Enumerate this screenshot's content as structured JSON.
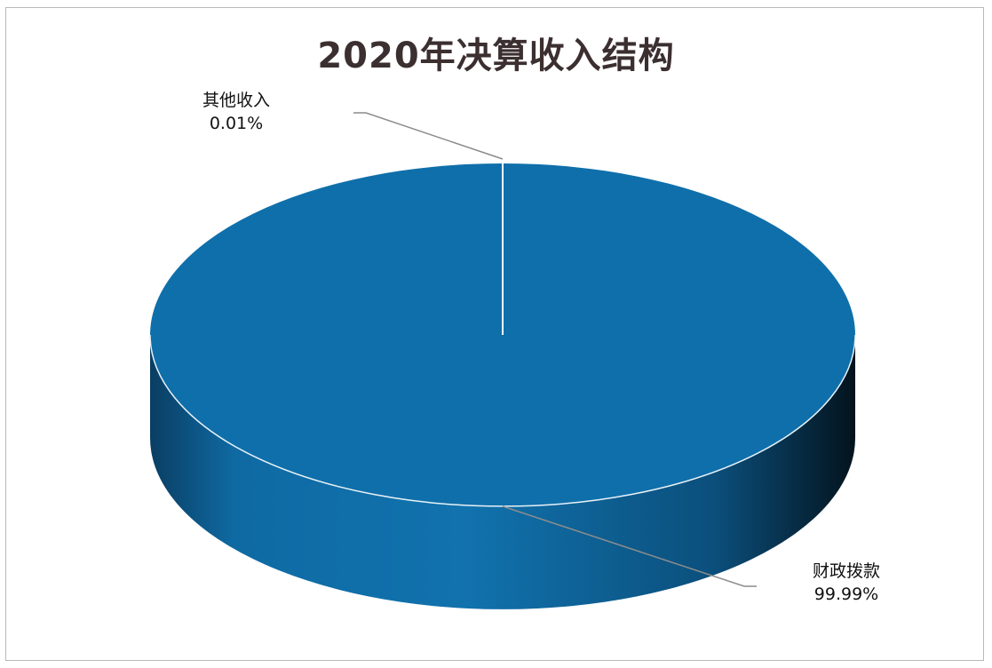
{
  "chart_data": {
    "type": "pie",
    "title": "2020年决算收入结构",
    "slices": [
      {
        "label": "财政拨款",
        "value": 99.99,
        "display": "99.99%",
        "color": "#0f6faa"
      },
      {
        "label": "其他收入",
        "value": 0.01,
        "display": "0.01%",
        "color": "#0f6faa"
      }
    ],
    "style": "3d"
  }
}
